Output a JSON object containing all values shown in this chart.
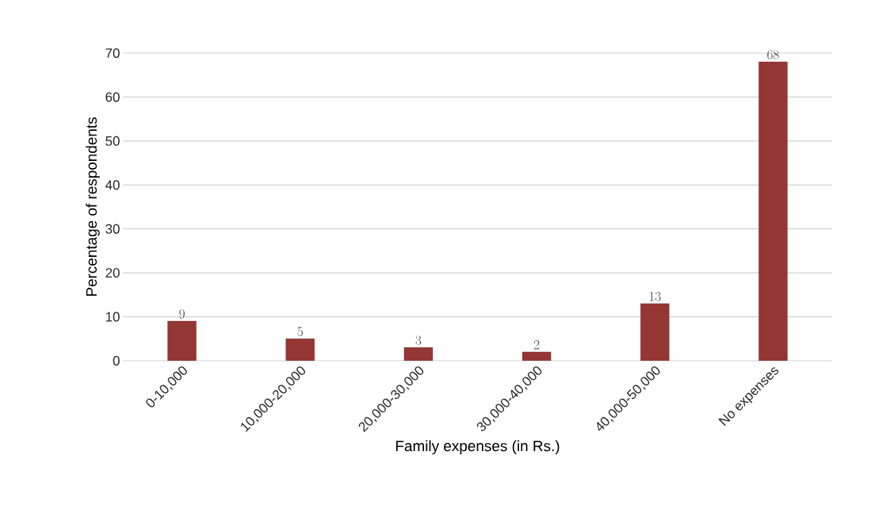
{
  "chart_data": {
    "type": "bar",
    "xlabel": "Family expenses (in Rs.)",
    "ylabel": "Percentage of respondents",
    "categories": [
      "0-10,000",
      "10,000-20,000",
      "20,000-30,000",
      "30,000-40,000",
      "40,000-50,000",
      "No expenses"
    ],
    "values": [
      9,
      5,
      3,
      2,
      13,
      68
    ],
    "color": "#943634",
    "ylim": [
      0,
      70
    ],
    "yticks": [
      0,
      10,
      20,
      30,
      40,
      50,
      60,
      70
    ],
    "grid": "y",
    "data_labels": true
  }
}
